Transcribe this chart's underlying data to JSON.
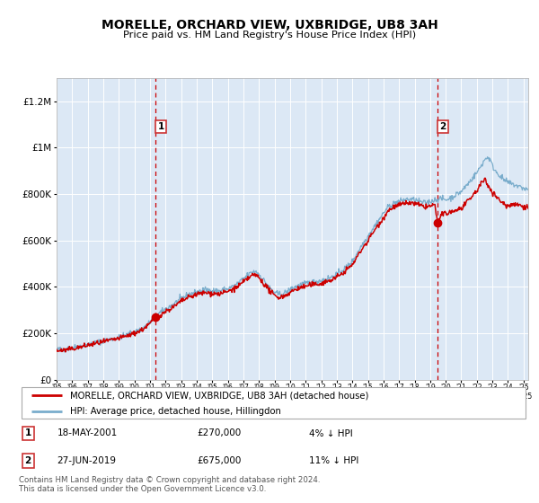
{
  "title": "MORELLE, ORCHARD VIEW, UXBRIDGE, UB8 3AH",
  "subtitle": "Price paid vs. HM Land Registry's House Price Index (HPI)",
  "sale1_date": "18-MAY-2001",
  "sale1_price": 270000,
  "sale1_label": "4% ↓ HPI",
  "sale1_year": 2001.37,
  "sale2_date": "27-JUN-2019",
  "sale2_price": 675000,
  "sale2_label": "11% ↓ HPI",
  "sale2_year": 2019.49,
  "legend_line1": "MORELLE, ORCHARD VIEW, UXBRIDGE, UB8 3AH (detached house)",
  "legend_line2": "HPI: Average price, detached house, Hillingdon",
  "footnote1": "Contains HM Land Registry data © Crown copyright and database right 2024.",
  "footnote2": "This data is licensed under the Open Government Licence v3.0.",
  "red_color": "#cc0000",
  "blue_color": "#7aadcc",
  "background_color": "#dce8f5",
  "grid_color": "#b8cfe0",
  "ylim_min": 0,
  "ylim_max": 1300000,
  "xmin": 1995.0,
  "xmax": 2025.3
}
